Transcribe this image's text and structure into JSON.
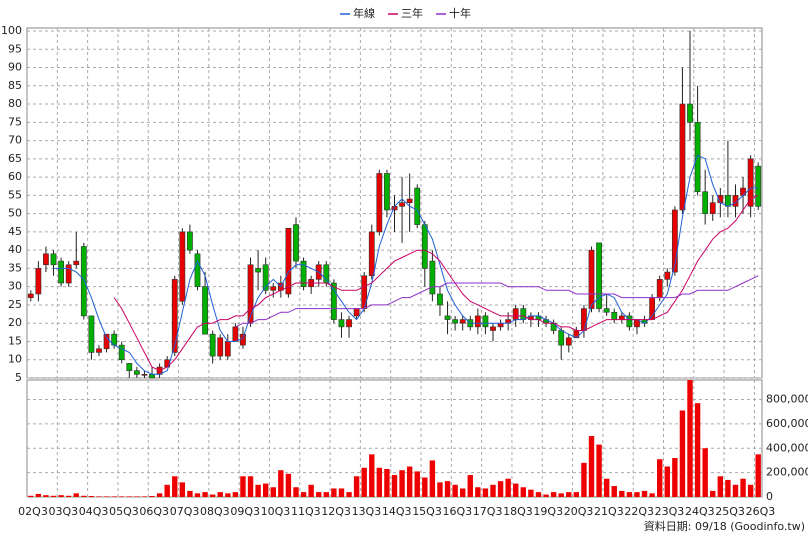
{
  "chart_data": [
    {
      "type": "candlestick",
      "up_color": "#e60000",
      "down_color": "#00b000",
      "open": [
        27,
        28,
        36,
        39,
        37,
        31,
        36,
        41,
        22,
        12,
        13,
        17,
        14,
        9,
        7,
        6,
        6,
        6,
        8,
        12,
        26,
        45,
        39,
        30,
        17,
        11,
        11,
        15,
        14,
        20,
        35,
        36,
        29,
        29,
        28,
        47,
        37,
        30,
        32,
        36,
        31,
        21,
        19,
        22,
        24,
        33,
        45,
        61,
        51,
        52,
        53,
        57,
        47,
        37,
        28,
        22,
        21,
        20,
        21,
        19,
        22,
        18,
        19,
        20,
        21,
        24,
        21,
        22,
        21,
        20,
        18,
        14,
        16,
        18,
        24,
        42,
        24,
        23,
        21,
        22,
        19,
        21,
        21,
        27,
        32,
        34,
        51,
        80,
        75,
        56,
        50,
        53,
        55,
        52,
        55,
        52,
        63
      ],
      "high": [
        29,
        37,
        41,
        40,
        38,
        37,
        45,
        42,
        22,
        14,
        17,
        18,
        15,
        9,
        8,
        7,
        8,
        9,
        11,
        33,
        46,
        47,
        40,
        34,
        18,
        17,
        17,
        20,
        19,
        38,
        40,
        38,
        31,
        33,
        46,
        49,
        38,
        33,
        37,
        37,
        32,
        23,
        22,
        24,
        34,
        47,
        62,
        62,
        55,
        60,
        61,
        58,
        48,
        40,
        30,
        26,
        22,
        22,
        22,
        24,
        23,
        20,
        21,
        23,
        25,
        25,
        23,
        23,
        22,
        21,
        19,
        17,
        19,
        25,
        41,
        42,
        28,
        24,
        23,
        23,
        21,
        22,
        28,
        33,
        35,
        52,
        90,
        100,
        85,
        62,
        55,
        57,
        70,
        58,
        60,
        66,
        64
      ],
      "low": [
        26,
        26,
        34,
        33,
        30,
        30,
        35,
        21,
        10,
        11,
        12,
        13,
        9,
        5,
        5,
        5,
        5,
        5,
        8,
        11,
        25,
        39,
        29,
        17,
        9,
        10,
        10,
        15,
        13,
        19,
        29,
        28,
        27,
        27,
        27,
        35,
        29,
        28,
        30,
        30,
        20,
        16,
        16,
        21,
        23,
        32,
        44,
        49,
        45,
        42,
        45,
        46,
        30,
        26,
        22,
        17,
        18,
        18,
        18,
        17,
        17,
        15,
        18,
        18,
        19,
        20,
        19,
        19,
        19,
        17,
        10,
        12,
        16,
        16,
        23,
        23,
        22,
        20,
        20,
        18,
        17,
        19,
        21,
        26,
        30,
        33,
        50,
        70,
        55,
        47,
        48,
        49,
        49,
        49,
        50,
        49,
        51
      ],
      "close": [
        28,
        35,
        39,
        36,
        31,
        36,
        37,
        22,
        12,
        13,
        17,
        14,
        10,
        7,
        6,
        6,
        5,
        8,
        10,
        32,
        45,
        40,
        30,
        17,
        11,
        16,
        15,
        19,
        17,
        36,
        34,
        29,
        30,
        31,
        46,
        37,
        30,
        32,
        36,
        31,
        21,
        19,
        21,
        24,
        33,
        45,
        61,
        51,
        52,
        53,
        54,
        47,
        35,
        28,
        25,
        21,
        20,
        21,
        19,
        22,
        19,
        19,
        20,
        21,
        24,
        21,
        22,
        21,
        20,
        18,
        14,
        16,
        18,
        24,
        40,
        24,
        23,
        21,
        22,
        19,
        21,
        20,
        27,
        32,
        34,
        51,
        80,
        75,
        56,
        50,
        53,
        55,
        52,
        55,
        57,
        65,
        52
      ],
      "series": [
        {
          "name": "年線",
          "color": "#1f5fd6",
          "values": [
            null,
            null,
            null,
            35,
            35,
            35,
            34,
            32,
            27,
            21,
            16,
            14,
            13,
            12,
            9,
            7,
            6,
            6,
            7,
            14,
            23,
            32,
            37,
            33,
            25,
            18,
            15,
            15,
            16,
            22,
            27,
            30,
            32,
            30,
            34,
            36,
            36,
            35,
            34,
            32,
            29,
            26,
            23,
            21,
            24,
            31,
            41,
            47,
            52,
            54,
            52,
            51,
            47,
            43,
            36,
            29,
            25,
            22,
            20,
            20,
            20,
            20,
            20,
            20,
            21,
            21,
            22,
            22,
            21,
            20,
            18,
            17,
            16,
            18,
            25,
            27,
            28,
            27,
            23,
            21,
            21,
            20,
            22,
            25,
            28,
            36,
            49,
            60,
            66,
            65,
            58,
            53,
            52,
            53,
            55,
            57,
            57
          ]
        },
        {
          "name": "三年",
          "color": "#cc0066",
          "values": [
            null,
            null,
            null,
            null,
            null,
            null,
            null,
            null,
            null,
            null,
            null,
            27,
            24,
            20,
            16,
            12,
            8,
            7,
            8,
            10,
            13,
            16,
            19,
            20,
            20,
            21,
            21,
            22,
            22,
            24,
            25,
            27,
            28,
            29,
            30,
            31,
            31,
            31,
            31,
            31,
            30,
            29,
            29,
            29,
            30,
            31,
            33,
            35,
            37,
            38,
            39,
            40,
            40,
            39,
            37,
            34,
            31,
            28,
            26,
            25,
            24,
            23,
            22,
            22,
            22,
            22,
            21,
            21,
            20,
            20,
            19,
            19,
            18,
            18,
            19,
            20,
            21,
            21,
            21,
            21,
            21,
            21,
            21,
            22,
            23,
            26,
            29,
            33,
            37,
            40,
            43,
            45,
            46,
            48,
            51,
            54,
            55
          ]
        },
        {
          "name": "十年",
          "color": "#8e2fc8",
          "values": [
            null,
            null,
            null,
            null,
            null,
            null,
            null,
            null,
            null,
            null,
            null,
            null,
            null,
            null,
            null,
            null,
            null,
            null,
            null,
            null,
            null,
            null,
            null,
            null,
            null,
            null,
            null,
            19,
            20,
            20,
            21,
            21,
            22,
            23,
            23,
            24,
            24,
            24,
            24,
            24,
            24,
            24,
            24,
            24,
            24,
            25,
            25,
            25,
            26,
            27,
            27,
            28,
            29,
            30,
            30,
            31,
            31,
            31,
            31,
            31,
            31,
            31,
            31,
            30,
            30,
            30,
            30,
            30,
            29,
            29,
            29,
            29,
            28,
            28,
            28,
            28,
            28,
            28,
            27,
            27,
            27,
            27,
            27,
            27,
            27,
            27,
            28,
            28,
            29,
            29,
            29,
            29,
            29,
            30,
            31,
            32,
            33
          ]
        }
      ],
      "ylim": [
        5,
        100
      ],
      "yticks": [
        5,
        10,
        15,
        20,
        25,
        30,
        35,
        40,
        45,
        50,
        55,
        60,
        65,
        70,
        75,
        80,
        85,
        90,
        95,
        100
      ],
      "grid": true
    },
    {
      "type": "bar",
      "color": "#ee0000",
      "categories": [
        "02Q3",
        null,
        null,
        null,
        "03Q3",
        null,
        null,
        null,
        "04Q3",
        null,
        null,
        null,
        "05Q3",
        null,
        null,
        null,
        "06Q3",
        null,
        null,
        null,
        "07Q3",
        null,
        null,
        null,
        "08Q3",
        null,
        null,
        null,
        "09Q3",
        null,
        null,
        null,
        "10Q3",
        null,
        null,
        null,
        "11Q3",
        null,
        null,
        null,
        "12Q3",
        null,
        null,
        null,
        "13Q3",
        null,
        null,
        null,
        "14Q3",
        null,
        null,
        null,
        "15Q3",
        null,
        null,
        null,
        "16Q3",
        null,
        null,
        null,
        "17Q3",
        null,
        null,
        null,
        "18Q3",
        null,
        null,
        null,
        "19Q3",
        null,
        null,
        null,
        "20Q3",
        null,
        null,
        null,
        "21Q3",
        null,
        null,
        null,
        "22Q3",
        null,
        null,
        null,
        "23Q3",
        null,
        null,
        null,
        "24Q3",
        null,
        null,
        null,
        "25Q3",
        null,
        null,
        null,
        "26Q3"
      ],
      "values": [
        10000,
        25000,
        15000,
        10000,
        15000,
        10000,
        30000,
        10000,
        8000,
        5000,
        5000,
        5000,
        5000,
        5000,
        5000,
        5000,
        8000,
        30000,
        100000,
        170000,
        120000,
        50000,
        30000,
        40000,
        20000,
        40000,
        30000,
        40000,
        170000,
        170000,
        100000,
        110000,
        80000,
        220000,
        190000,
        80000,
        40000,
        100000,
        40000,
        40000,
        70000,
        70000,
        40000,
        170000,
        240000,
        350000,
        240000,
        230000,
        180000,
        220000,
        250000,
        210000,
        160000,
        300000,
        120000,
        130000,
        100000,
        70000,
        180000,
        80000,
        70000,
        100000,
        130000,
        150000,
        110000,
        80000,
        60000,
        40000,
        20000,
        40000,
        30000,
        40000,
        40000,
        280000,
        500000,
        430000,
        150000,
        90000,
        50000,
        40000,
        40000,
        50000,
        30000,
        310000,
        250000,
        320000,
        710000,
        960000,
        770000,
        400000,
        50000,
        170000,
        140000,
        100000,
        150000,
        100000,
        350000
      ],
      "ylim": [
        0,
        960000
      ],
      "yticks": [
        0,
        {
          "value": 200000,
          "label": "200,000"
        },
        {
          "value": 400000,
          "label": "400,000"
        },
        {
          "value": 600000,
          "label": "600,000"
        },
        {
          "value": 800000,
          "label": "800,000"
        }
      ],
      "grid": true,
      "source": "資料日期: 09/18 (Goodinfo.tw)"
    }
  ]
}
